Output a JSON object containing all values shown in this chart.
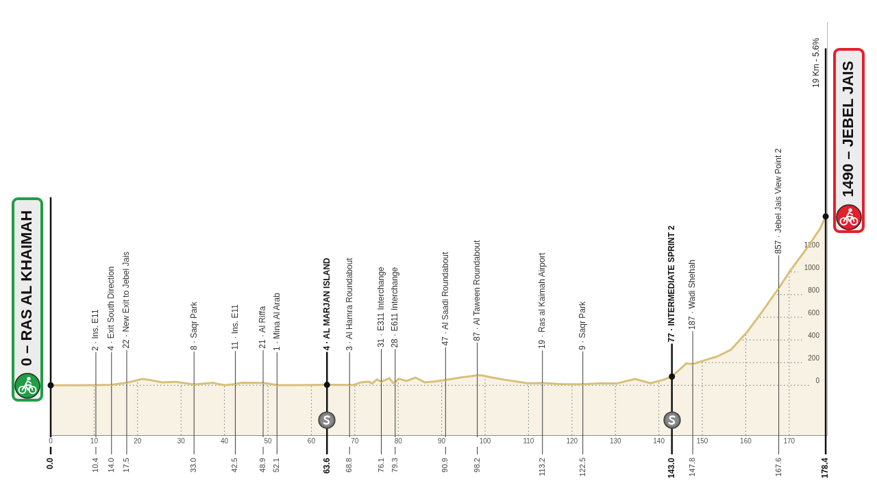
{
  "chart_data": {
    "type": "area",
    "x": [
      0,
      10.4,
      14.0,
      17.5,
      21.1,
      23.0,
      25.6,
      28.8,
      33.0,
      37.5,
      38.2,
      40.1,
      42.5,
      44.0,
      48.9,
      50.6,
      52.1,
      57,
      63.6,
      68.8,
      69.8,
      71.4,
      73.2,
      74.0,
      75.1,
      76.1,
      78.0,
      78.8,
      79.3,
      80.1,
      81.9,
      84.0,
      86.1,
      88.2,
      90.9,
      94.5,
      98.2,
      99.2,
      101.9,
      105.0,
      109.8,
      113.2,
      117.6,
      122.5,
      126.6,
      130.3,
      134.5,
      138.1,
      140.8,
      143.0,
      146.3,
      147.8,
      150.8,
      153.4,
      156.6,
      160.2,
      163.9,
      167.6,
      170.2,
      173.9,
      177.1,
      178.4
    ],
    "values": [
      0,
      2,
      4,
      22,
      56,
      46,
      26,
      30,
      8,
      22,
      14,
      2,
      11,
      22,
      21,
      12,
      1,
      2,
      4,
      3,
      3,
      26,
      32,
      16,
      52,
      31,
      62,
      20,
      28,
      58,
      38,
      68,
      26,
      33,
      47,
      70,
      87,
      87,
      66,
      46,
      18,
      19,
      10,
      9,
      18,
      16,
      56,
      18,
      46,
      77,
      193,
      187,
      224,
      254,
      314,
      465,
      656,
      857,
      1009,
      1200,
      1381,
      1490
    ],
    "color": "#d8c07a",
    "marker": "none",
    "xlim": [
      0,
      178.7
    ],
    "xticks": [
      0,
      10,
      20,
      30,
      40,
      50,
      60,
      70,
      80,
      90,
      100,
      110,
      120,
      130,
      140,
      150,
      160,
      170
    ],
    "x2lim": [
      0,
      178.7
    ],
    "x2ticks": [
      {
        "value": 0,
        "label": "0.0"
      },
      10.4,
      {
        "value": 14,
        "label": "14.0"
      },
      17.5,
      {
        "value": 33,
        "label": "33.0"
      },
      42.5,
      48.9,
      52.1,
      63.6,
      68.8,
      76.1,
      79.3,
      90.9,
      98.2,
      113.2,
      122.5,
      {
        "value": 143,
        "label": "143.0"
      },
      147.8,
      167.6,
      178.4
    ],
    "ylim": [
      -440,
      3200
    ],
    "yticks": [
      0,
      200,
      400,
      600,
      800,
      1000,
      1200
    ],
    "grid": true,
    "bands": [
      {
        "axis": "y",
        "from": -440,
        "to": 0,
        "color": "#f7f2e4"
      }
    ],
    "ref_lines": [
      {
        "axis": "x",
        "value": 0,
        "label": "0 – RAS AL KHAIMAH"
      },
      {
        "axis": "x",
        "value": 63.6,
        "label": "4 · AL MARJAN ISLAND"
      },
      {
        "axis": "x",
        "value": 143.0,
        "label": "77 · INTERMEDIATE SPRINT 2"
      },
      {
        "axis": "x",
        "value": 178.4,
        "label": "1490 – JEBEL JAIS"
      }
    ],
    "annotations": [
      {
        "text": "2 · Ins. E11",
        "x": 10.4,
        "y": 2
      },
      {
        "text": "4 · Exit South Direction",
        "x": 14.0,
        "y": 4
      },
      {
        "text": "22 · New Exit to Jebel Jais",
        "x": 17.5,
        "y": 22
      },
      {
        "text": "8 · Saqr Park",
        "x": 33.0,
        "y": 8
      },
      {
        "text": "11 · Ins. E11",
        "x": 42.5,
        "y": 11
      },
      {
        "text": "21 · Al Riffa",
        "x": 48.9,
        "y": 21
      },
      {
        "text": "1 · Mina Al Arab",
        "x": 52.1,
        "y": 1
      },
      {
        "text": "3 · Al Hamra Roundabout",
        "x": 68.8,
        "y": 3
      },
      {
        "text": "31 · E311 Interchange",
        "x": 76.1,
        "y": 31
      },
      {
        "text": "28 · E611 Interchange",
        "x": 79.3,
        "y": 28
      },
      {
        "text": "47 · Al Saadi Roundabout",
        "x": 90.9,
        "y": 47
      },
      {
        "text": "87 · Al Taween Roundabout",
        "x": 98.2,
        "y": 87
      },
      {
        "text": "19 · Ras al Kaimah Airport",
        "x": 113.2,
        "y": 19
      },
      {
        "text": "9 · Saqr Park",
        "x": 122.5,
        "y": 9
      },
      {
        "text": "187 · Wadi Shehah",
        "x": 147.8,
        "y": 187
      },
      {
        "text": "857 · Jebel Jais View Point 2",
        "x": 167.6,
        "y": 857
      },
      "19 Km - 5.6%"
    ]
  }
}
